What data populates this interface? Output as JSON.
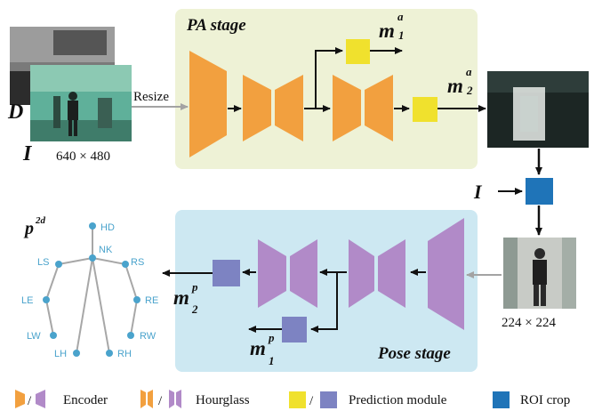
{
  "input": {
    "depth_label": "D",
    "image_label": "I",
    "size_label": "640 × 480",
    "resize_label": "Resize"
  },
  "pa_stage": {
    "title": "PA stage",
    "output1_base": "m",
    "output1_sup": "a",
    "output1_sub": "1",
    "output2_base": "m",
    "output2_sup": "a",
    "output2_sub": "2"
  },
  "roi": {
    "input_label": "I",
    "crop_size_label": "224 × 224"
  },
  "pose_stage": {
    "title": "Pose stage",
    "output1_base": "m",
    "output1_sup": "p",
    "output1_sub": "1",
    "output2_base": "m",
    "output2_sup": "p",
    "output2_sub": "2"
  },
  "skeleton": {
    "title_base": "p",
    "title_sup": "2d",
    "joints": [
      "HD",
      "NK",
      "LS",
      "RS",
      "LE",
      "RE",
      "LW",
      "RW",
      "LH",
      "RH"
    ]
  },
  "legend": {
    "encoder": "Encoder",
    "hourglass": "Hourglass",
    "prediction": "Prediction module",
    "roi_crop": "ROI crop",
    "sep": "/"
  },
  "colors": {
    "pa_stage_bg": "#eef2d6",
    "pose_stage_bg": "#cde8f2",
    "pa_block": "#f2a03f",
    "pose_block": "#b18ac8",
    "pa_pred": "#f0e12d",
    "pose_pred": "#7d83c2",
    "roi_crop": "#1f74b8",
    "joint": "#4aa3cc"
  }
}
